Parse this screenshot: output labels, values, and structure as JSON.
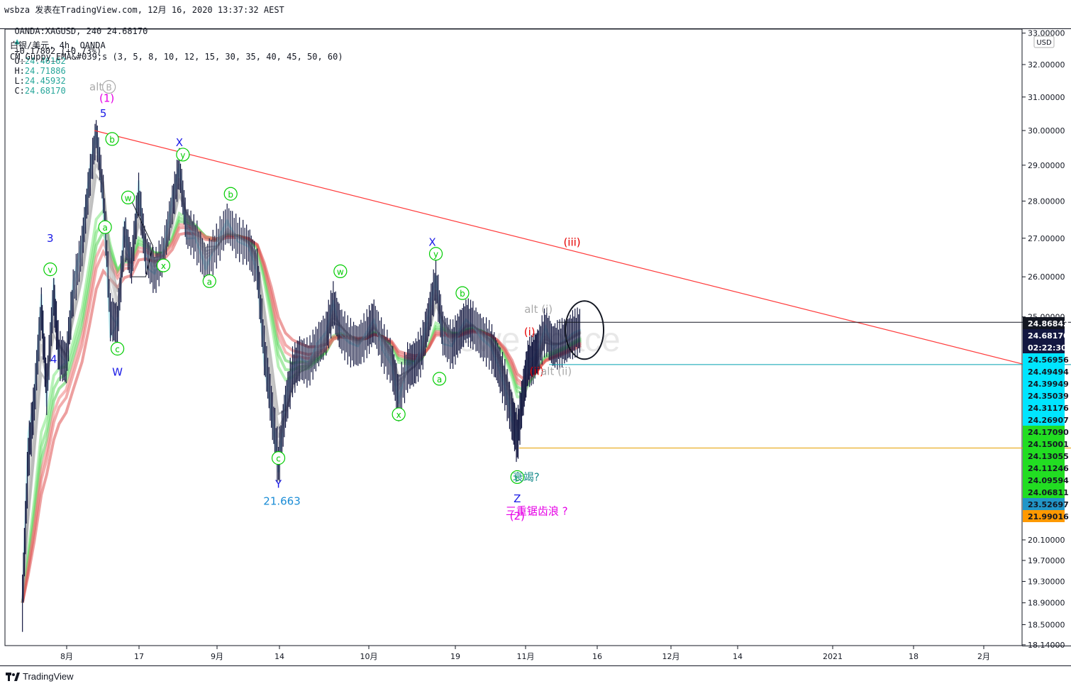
{
  "header": {
    "line1": "wsbza 发表在TradingView.com, 12月 16, 2020 13:37:32 AEST",
    "symbol": "OANDA:XAGUSD, 240 24.68170",
    "change": "+0.17802 (+0.73%)",
    "o_label": "O:",
    "o_value": "24.46162",
    "h_label": "H:",
    "h_value": "24.71886",
    "l_label": "L:",
    "l_value": "24.45932",
    "c_label": "C:",
    "c_value": "24.68170",
    "instrument": "白银/美元, 4h, OANDA",
    "indicator": "CM_Guppy_EMA&#039;s (3, 5, 8, 10, 12, 15, 30, 35, 40, 45, 50, 60)"
  },
  "footer": {
    "brand": "TradingView"
  },
  "watermark": "ewe space",
  "colors": {
    "green": "#00cc00",
    "blue": "#1a1ae6",
    "magenta": "#e600e6",
    "red": "#e60000",
    "gray": "#aaaaaa",
    "trend": "#ff3b3b",
    "candle": "#131740"
  },
  "chart_data": {
    "type": "line",
    "y_axis": {
      "unit": "USD",
      "ticks": [
        "33.00000",
        "32.00000",
        "31.00000",
        "30.00000",
        "29.00000",
        "28.00000",
        "27.00000",
        "26.00000",
        "25.00000",
        "20.10000",
        "19.70000",
        "19.30000",
        "18.90000",
        "18.50000",
        "18.14000"
      ],
      "scale": "log"
    },
    "x_axis": {
      "ticks": [
        "8月",
        "17",
        "9月",
        "14",
        "10月",
        "19",
        "11月",
        "16",
        "12月",
        "14",
        "2021",
        "18",
        "2月"
      ]
    },
    "price_labels": [
      {
        "value": "24.86842",
        "bg": "#131722",
        "fg": "#ffffff"
      },
      {
        "value": "24.68170",
        "bg": "#131740",
        "fg": "#ffffff"
      },
      {
        "value": "02:22:30",
        "bg": "#131740",
        "fg": "#ffffff"
      },
      {
        "value": "24.56956",
        "bg": "#00e5ff",
        "fg": "#131722"
      },
      {
        "value": "24.49494",
        "bg": "#00e5ff",
        "fg": "#131722"
      },
      {
        "value": "24.39949",
        "bg": "#00e5ff",
        "fg": "#131722"
      },
      {
        "value": "24.35039",
        "bg": "#00e5ff",
        "fg": "#131722"
      },
      {
        "value": "24.31176",
        "bg": "#00e5ff",
        "fg": "#131722"
      },
      {
        "value": "24.26907",
        "bg": "#00e5ff",
        "fg": "#131722"
      },
      {
        "value": "24.17090",
        "bg": "#22dd22",
        "fg": "#131722"
      },
      {
        "value": "24.15001",
        "bg": "#22dd22",
        "fg": "#131722"
      },
      {
        "value": "24.13055",
        "bg": "#22dd22",
        "fg": "#131722"
      },
      {
        "value": "24.11246",
        "bg": "#22dd22",
        "fg": "#131722"
      },
      {
        "value": "24.09594",
        "bg": "#22dd22",
        "fg": "#131722"
      },
      {
        "value": "24.06811",
        "bg": "#22dd22",
        "fg": "#131722"
      },
      {
        "value": "23.52697",
        "bg": "#2196c8",
        "fg": "#131722"
      },
      {
        "value": "21.99016",
        "bg": "#ff9900",
        "fg": "#131722"
      }
    ],
    "price_path": [
      [
        2020.5583,
        18.9
      ],
      [
        2020.5616,
        21.8
      ],
      [
        2020.565,
        23.0
      ],
      [
        2020.569,
        25.2
      ],
      [
        2020.572,
        23.3
      ],
      [
        2020.576,
        25.5
      ],
      [
        2020.579,
        24.1
      ],
      [
        2020.583,
        23.9
      ],
      [
        2020.587,
        25.6
      ],
      [
        2020.592,
        26.8
      ],
      [
        2020.596,
        28.5
      ],
      [
        2020.6,
        29.9
      ],
      [
        2020.604,
        28.2
      ],
      [
        2020.608,
        25.0
      ],
      [
        2020.612,
        24.8
      ],
      [
        2020.616,
        27.1
      ],
      [
        2020.62,
        26.3
      ],
      [
        2020.624,
        28.2
      ],
      [
        2020.628,
        26.6
      ],
      [
        2020.633,
        26.1
      ],
      [
        2020.638,
        26.6
      ],
      [
        2020.643,
        27.9
      ],
      [
        2020.647,
        28.9
      ],
      [
        2020.651,
        27.3
      ],
      [
        2020.656,
        27.0
      ],
      [
        2020.662,
        26.3
      ],
      [
        2020.668,
        26.8
      ],
      [
        2020.674,
        27.4
      ],
      [
        2020.68,
        27.0
      ],
      [
        2020.686,
        26.8
      ],
      [
        2020.691,
        26.2
      ],
      [
        2020.695,
        24.2
      ],
      [
        2020.699,
        22.9
      ],
      [
        2020.703,
        21.663
      ],
      [
        2020.707,
        22.9
      ],
      [
        2020.711,
        23.7
      ],
      [
        2020.715,
        24.0
      ],
      [
        2020.72,
        23.9
      ],
      [
        2020.725,
        24.3
      ],
      [
        2020.73,
        24.6
      ],
      [
        2020.734,
        25.3
      ],
      [
        2020.738,
        24.7
      ],
      [
        2020.743,
        24.4
      ],
      [
        2020.748,
        24.3
      ],
      [
        2020.753,
        24.6
      ],
      [
        2020.757,
        24.9
      ],
      [
        2020.762,
        24.3
      ],
      [
        2020.767,
        23.9
      ],
      [
        2020.771,
        23.1
      ],
      [
        2020.776,
        23.8
      ],
      [
        2020.78,
        23.9
      ],
      [
        2020.784,
        24.2
      ],
      [
        2020.788,
        25.0
      ],
      [
        2020.792,
        25.9
      ],
      [
        2020.796,
        24.6
      ],
      [
        2020.801,
        24.3
      ],
      [
        2020.805,
        24.6
      ],
      [
        2020.809,
        24.9
      ],
      [
        2020.813,
        24.8
      ],
      [
        2020.818,
        24.5
      ],
      [
        2020.823,
        24.3
      ],
      [
        2020.827,
        23.9
      ],
      [
        2020.831,
        23.4
      ],
      [
        2020.835,
        22.7
      ],
      [
        2020.838,
        22.2
      ],
      [
        2020.841,
        23.1
      ],
      [
        2020.844,
        23.9
      ],
      [
        2020.847,
        24.0
      ],
      [
        2020.85,
        24.2
      ],
      [
        2020.854,
        24.7
      ],
      [
        2020.858,
        24.3
      ],
      [
        2020.862,
        24.35
      ],
      [
        2020.866,
        24.45
      ],
      [
        2020.87,
        24.6
      ],
      [
        2020.874,
        24.68
      ]
    ],
    "trend_line": {
      "from": [
        2020.599,
        30.0
      ],
      "to": [
        2021.125,
        23.86
      ]
    },
    "horizontal_lines": [
      {
        "value": 24.86842,
        "from_x": 2020.861,
        "color": "#131722"
      },
      {
        "value": 23.86,
        "from_x": 2020.856,
        "color": "#00a0b0"
      },
      {
        "value": 21.99016,
        "from_x": 2020.839,
        "color": "#e6a000"
      }
    ],
    "wave_labels": [
      {
        "text": "alt",
        "x": 2020.6,
        "y": 31.2,
        "color": "#aaaaaa",
        "circled": false
      },
      {
        "text": "B",
        "x": 2020.6072,
        "y": 31.2,
        "color": "#aaaaaa",
        "circled": true
      },
      {
        "text": "(1)",
        "x": 2020.606,
        "y": 30.85,
        "color": "#e600e6",
        "circled": false
      },
      {
        "text": "5",
        "x": 2020.604,
        "y": 30.4,
        "color": "#1a1ae6",
        "circled": false
      },
      {
        "text": "b",
        "x": 2020.609,
        "y": 29.65,
        "color": "#00cc00",
        "circled": true
      },
      {
        "text": "3",
        "x": 2020.574,
        "y": 26.9,
        "color": "#1a1ae6",
        "circled": false
      },
      {
        "text": "v",
        "x": 2020.574,
        "y": 26.1,
        "color": "#00cc00",
        "circled": true
      },
      {
        "text": "4",
        "x": 2020.576,
        "y": 23.9,
        "color": "#1a1ae6",
        "circled": false
      },
      {
        "text": "a",
        "x": 2020.605,
        "y": 27.2,
        "color": "#00cc00",
        "circled": true
      },
      {
        "text": "w",
        "x": 2020.618,
        "y": 28.0,
        "color": "#00cc00",
        "circled": true
      },
      {
        "text": "c",
        "x": 2020.612,
        "y": 24.15,
        "color": "#00cc00",
        "circled": true
      },
      {
        "text": "W",
        "x": 2020.612,
        "y": 23.6,
        "color": "#1a1ae6",
        "circled": false
      },
      {
        "text": "x",
        "x": 2020.638,
        "y": 26.2,
        "color": "#00cc00",
        "circled": true
      },
      {
        "text": "X",
        "x": 2020.647,
        "y": 29.55,
        "color": "#1a1ae6",
        "circled": false
      },
      {
        "text": "y",
        "x": 2020.649,
        "y": 29.2,
        "color": "#00cc00",
        "circled": true
      },
      {
        "text": "a",
        "x": 2020.664,
        "y": 25.8,
        "color": "#00cc00",
        "circled": true
      },
      {
        "text": "b",
        "x": 2020.676,
        "y": 28.1,
        "color": "#00cc00",
        "circled": true
      },
      {
        "text": "c",
        "x": 2020.703,
        "y": 21.7,
        "color": "#00cc00",
        "circled": true
      },
      {
        "text": "Y",
        "x": 2020.703,
        "y": 21.15,
        "color": "#1a1ae6",
        "circled": false
      },
      {
        "text": "21.663",
        "x": 2020.705,
        "y": 20.8,
        "color": "#1a8cd6",
        "circled": false
      },
      {
        "text": "w",
        "x": 2020.738,
        "y": 26.05,
        "color": "#00cc00",
        "circled": true
      },
      {
        "text": "x",
        "x": 2020.771,
        "y": 22.65,
        "color": "#00cc00",
        "circled": true
      },
      {
        "text": "X",
        "x": 2020.79,
        "y": 26.8,
        "color": "#1a1ae6",
        "circled": false
      },
      {
        "text": "y",
        "x": 2020.792,
        "y": 26.5,
        "color": "#00cc00",
        "circled": true
      },
      {
        "text": "a",
        "x": 2020.794,
        "y": 23.45,
        "color": "#00cc00",
        "circled": true
      },
      {
        "text": "b",
        "x": 2020.807,
        "y": 25.5,
        "color": "#00cc00",
        "circled": true
      },
      {
        "text": "c",
        "x": 2020.838,
        "y": 21.3,
        "color": "#00cc00",
        "circled": true
      },
      {
        "text": "Z",
        "x": 2020.838,
        "y": 20.85,
        "color": "#1a1ae6",
        "circled": false
      },
      {
        "text": "(2)",
        "x": 2020.838,
        "y": 20.5,
        "color": "#e600e6",
        "circled": false
      },
      {
        "text": "(i)",
        "x": 2020.845,
        "y": 24.55,
        "color": "#e60000",
        "circled": false
      },
      {
        "text": "(ii)",
        "x": 2020.849,
        "y": 23.62,
        "color": "#e60000",
        "circled": false
      },
      {
        "text": "(iii)",
        "x": 2020.869,
        "y": 26.8,
        "color": "#e60000",
        "circled": false
      },
      {
        "text": "alt (i)",
        "x": 2020.85,
        "y": 25.1,
        "color": "#aaaaaa",
        "circled": false
      },
      {
        "text": "alt (ii)",
        "x": 2020.86,
        "y": 23.62,
        "color": "#aaaaaa",
        "circled": false
      },
      {
        "text": "衰竭?",
        "x": 2020.843,
        "y": 21.3,
        "color": "#1a8c8c",
        "circled": false
      },
      {
        "text": "三重锯齿浪 ?",
        "x": 2020.849,
        "y": 20.6,
        "color": "#e600e6",
        "circled": false
      }
    ]
  }
}
